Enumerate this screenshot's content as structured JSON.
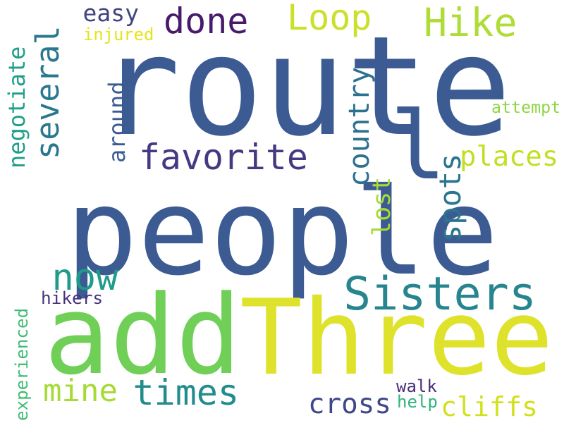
{
  "words": [
    {
      "text": "route",
      "color": "#3b5b92",
      "rotated": false
    },
    {
      "text": "people",
      "color": "#3b5b92",
      "rotated": false
    },
    {
      "text": "l",
      "color": "#3b5b92",
      "rotated": false
    },
    {
      "text": "Three",
      "color": "#dfe22b",
      "rotated": false
    },
    {
      "text": "add",
      "color": "#70cf57",
      "rotated": false
    },
    {
      "text": "Sisters",
      "color": "#26858e",
      "rotated": false
    },
    {
      "text": "done",
      "color": "#481a6c",
      "rotated": false
    },
    {
      "text": "Loop",
      "color": "#cbe02b",
      "rotated": false
    },
    {
      "text": "Hike",
      "color": "#b0dc38",
      "rotated": false
    },
    {
      "text": "easy",
      "color": "#41457f",
      "rotated": false
    },
    {
      "text": "injured",
      "color": "#e5e419",
      "rotated": false
    },
    {
      "text": "several",
      "color": "#2a788e",
      "rotated": true
    },
    {
      "text": "negotiate",
      "color": "#1f9e89",
      "rotated": true
    },
    {
      "text": "around",
      "color": "#3b5b92",
      "rotated": true
    },
    {
      "text": "favorite",
      "color": "#443a83",
      "rotated": false
    },
    {
      "text": "country",
      "color": "#2c718e",
      "rotated": true
    },
    {
      "text": "spots",
      "color": "#2a768e",
      "rotated": true
    },
    {
      "text": "places",
      "color": "#c2df23",
      "rotated": false
    },
    {
      "text": "attempt",
      "color": "#8ed645",
      "rotated": false
    },
    {
      "text": "lost",
      "color": "#a8db34",
      "rotated": true
    },
    {
      "text": "now",
      "color": "#1e9b8a",
      "rotated": false
    },
    {
      "text": "hikers",
      "color": "#46337e",
      "rotated": false
    },
    {
      "text": "experienced",
      "color": "#3ebc73",
      "rotated": true
    },
    {
      "text": "mine",
      "color": "#a5db36",
      "rotated": false
    },
    {
      "text": "times",
      "color": "#228c8d",
      "rotated": false
    },
    {
      "text": "cross",
      "color": "#404688",
      "rotated": false
    },
    {
      "text": "walk",
      "color": "#472d7b",
      "rotated": false
    },
    {
      "text": "help",
      "color": "#2fb47c",
      "rotated": false
    },
    {
      "text": "cliffs",
      "color": "#d0e11c",
      "rotated": false
    }
  ]
}
